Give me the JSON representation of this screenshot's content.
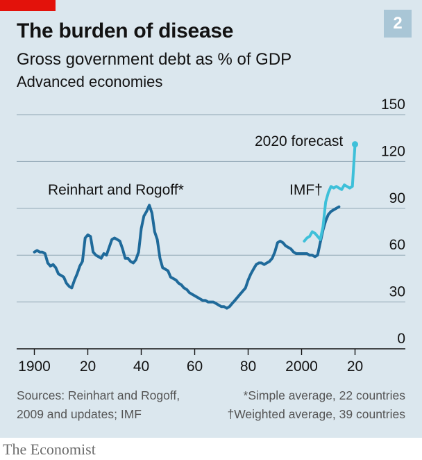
{
  "header": {
    "title": "The burden of disease",
    "badge": "2",
    "subtitle": "Gross government debt as % of GDP",
    "subtitle2": "Advanced economies"
  },
  "footer": {
    "sources_line1": "Sources: Reinhart and Rogoff,",
    "sources_line2": "2009 and updates; IMF",
    "note1": "*Simple average, 22 countries",
    "note2": "†Weighted average, 39 countries"
  },
  "brand": "The Economist",
  "colors": {
    "background": "#dbe7ee",
    "rr_series": "#1f6a9a",
    "imf_series": "#3ec0d9",
    "accent_red": "#e3120b"
  },
  "chart_data": {
    "type": "line",
    "xlim": [
      1897,
      2020
    ],
    "ylim": [
      0,
      150
    ],
    "x_ticks": [
      1900,
      1920,
      1940,
      1960,
      1980,
      2000,
      2020
    ],
    "x_tick_labels": [
      "1900",
      "20",
      "40",
      "60",
      "80",
      "2000",
      "20"
    ],
    "y_ticks": [
      0,
      30,
      60,
      90,
      120,
      150
    ],
    "y_tick_labels": [
      "0",
      "30",
      "60",
      "90",
      "120",
      "150"
    ],
    "grid": "horizontal",
    "series": [
      {
        "name": "Reinhart and Rogoff*",
        "color": "#1f6a9a",
        "x": [
          1900,
          1901,
          1902,
          1903,
          1904,
          1905,
          1906,
          1907,
          1908,
          1909,
          1910,
          1911,
          1912,
          1913,
          1914,
          1915,
          1916,
          1917,
          1918,
          1919,
          1920,
          1921,
          1922,
          1923,
          1924,
          1925,
          1926,
          1927,
          1928,
          1929,
          1930,
          1931,
          1932,
          1933,
          1934,
          1935,
          1936,
          1937,
          1938,
          1939,
          1940,
          1941,
          1942,
          1943,
          1944,
          1945,
          1946,
          1947,
          1948,
          1949,
          1950,
          1951,
          1952,
          1953,
          1954,
          1955,
          1956,
          1957,
          1958,
          1959,
          1960,
          1961,
          1962,
          1963,
          1964,
          1965,
          1966,
          1967,
          1968,
          1969,
          1970,
          1971,
          1972,
          1973,
          1974,
          1975,
          1976,
          1977,
          1978,
          1979,
          1980,
          1981,
          1982,
          1983,
          1984,
          1985,
          1986,
          1987,
          1988,
          1989,
          1990,
          1991,
          1992,
          1993,
          1994,
          1995,
          1996,
          1997,
          1998,
          1999,
          2000,
          2001,
          2002,
          2003,
          2004,
          2005,
          2006,
          2007,
          2008,
          2009,
          2010,
          2011,
          2012,
          2013,
          2014
        ],
        "values": [
          62,
          63,
          62,
          62,
          61,
          55,
          53,
          54,
          52,
          48,
          47,
          46,
          42,
          40,
          39,
          44,
          48,
          53,
          56,
          71,
          73,
          72,
          62,
          60,
          59,
          58,
          61,
          60,
          65,
          70,
          71,
          70,
          69,
          64,
          58,
          58,
          56,
          55,
          57,
          62,
          77,
          85,
          88,
          92,
          87,
          75,
          70,
          58,
          52,
          51,
          50,
          46,
          45,
          44,
          42,
          41,
          39,
          38,
          36,
          35,
          34,
          33,
          32,
          31,
          31,
          30,
          30,
          30,
          29,
          28,
          27,
          27,
          26,
          27,
          29,
          31,
          33,
          35,
          37,
          39,
          44,
          48,
          51,
          54,
          55,
          55,
          54,
          55,
          56,
          58,
          62,
          68,
          69,
          68,
          66,
          65,
          64,
          62,
          61,
          61,
          61,
          61,
          61,
          60,
          60,
          59,
          60,
          68,
          76,
          82,
          86,
          88,
          89,
          90,
          91
        ]
      },
      {
        "name": "IMF†",
        "color": "#3ec0d9",
        "x": [
          2001,
          2002,
          2003,
          2004,
          2005,
          2006,
          2007,
          2008,
          2009,
          2010,
          2011,
          2012,
          2013,
          2014,
          2015,
          2016,
          2017,
          2018,
          2019,
          2020
        ],
        "values": [
          69,
          71,
          72,
          75,
          74,
          72,
          70,
          78,
          94,
          100,
          104,
          103,
          104,
          103,
          102,
          105,
          104,
          103,
          104,
          131
        ]
      }
    ],
    "annotations": [
      {
        "text": "Reinhart and Rogoff*"
      },
      {
        "text": "IMF†"
      },
      {
        "text": "2020 forecast"
      }
    ]
  }
}
